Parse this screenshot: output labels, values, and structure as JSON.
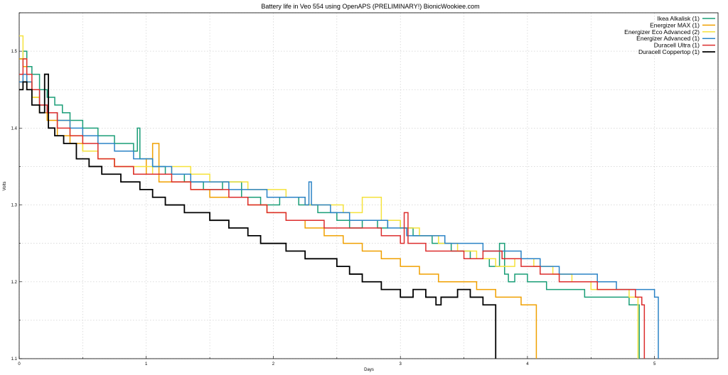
{
  "chart_data": {
    "type": "line",
    "title": "Battery life in Veo 554 using OpenAPS (PRELIMINARY!) BionicWookiee.com",
    "xlabel": "Days",
    "ylabel": "Volts",
    "xlim": [
      0,
      5.5
    ],
    "ylim": [
      1.1,
      1.55
    ],
    "xticks": [
      "0",
      "1",
      "2",
      "3",
      "4",
      "5"
    ],
    "yticks": [
      "1.1",
      "1.2",
      "1.3",
      "1.4",
      "1.5"
    ],
    "grid": true,
    "legend_position": "top-right",
    "step": true,
    "series": [
      {
        "name": "Ikea Alkalisk (1)",
        "color": "#1a9e77",
        "x": [
          0,
          0.03,
          0.06,
          0.1,
          0.16,
          0.22,
          0.28,
          0.34,
          0.4,
          0.5,
          0.62,
          0.75,
          0.9,
          0.93,
          0.95,
          1.05,
          1.15,
          1.3,
          1.45,
          1.6,
          1.75,
          1.9,
          2.05,
          2.2,
          2.35,
          2.5,
          2.6,
          2.7,
          2.82,
          2.9,
          3.0,
          3.1,
          3.25,
          3.4,
          3.55,
          3.7,
          3.78,
          3.82,
          3.85,
          3.9,
          4.0,
          4.15,
          4.3,
          4.45,
          4.6,
          4.7,
          4.8,
          4.85,
          4.88
        ],
        "y": [
          1.49,
          1.5,
          1.48,
          1.47,
          1.45,
          1.44,
          1.43,
          1.42,
          1.41,
          1.4,
          1.39,
          1.38,
          1.37,
          1.4,
          1.36,
          1.35,
          1.34,
          1.33,
          1.32,
          1.33,
          1.31,
          1.3,
          1.31,
          1.3,
          1.29,
          1.28,
          1.27,
          1.28,
          1.27,
          1.28,
          1.27,
          1.26,
          1.25,
          1.24,
          1.23,
          1.22,
          1.25,
          1.21,
          1.2,
          1.21,
          1.2,
          1.19,
          1.19,
          1.18,
          1.18,
          1.18,
          1.17,
          1.17,
          1.1
        ]
      },
      {
        "name": "Energizer MAX (1)",
        "color": "#f0a000",
        "x": [
          0,
          0.03,
          0.06,
          0.1,
          0.16,
          0.22,
          0.3,
          0.4,
          0.5,
          0.62,
          0.75,
          0.9,
          1.0,
          1.05,
          1.1,
          1.2,
          1.35,
          1.5,
          1.65,
          1.8,
          1.95,
          2.1,
          2.25,
          2.4,
          2.55,
          2.7,
          2.85,
          3.0,
          3.15,
          3.3,
          3.45,
          3.6,
          3.75,
          3.85,
          3.95,
          4.05,
          4.07
        ],
        "y": [
          1.49,
          1.48,
          1.46,
          1.44,
          1.42,
          1.41,
          1.39,
          1.38,
          1.37,
          1.36,
          1.35,
          1.34,
          1.36,
          1.38,
          1.33,
          1.33,
          1.32,
          1.31,
          1.31,
          1.3,
          1.29,
          1.28,
          1.27,
          1.26,
          1.25,
          1.24,
          1.23,
          1.22,
          1.21,
          1.2,
          1.2,
          1.19,
          1.18,
          1.18,
          1.17,
          1.17,
          1.1
        ]
      },
      {
        "name": "Energizer Eco Advanced (2)",
        "color": "#f5e23c",
        "x": [
          0,
          0.03,
          0.06,
          0.1,
          0.16,
          0.22,
          0.3,
          0.4,
          0.5,
          0.62,
          0.75,
          0.9,
          1.05,
          1.2,
          1.35,
          1.5,
          1.65,
          1.8,
          1.95,
          2.1,
          2.25,
          2.4,
          2.55,
          2.7,
          2.85,
          3.0,
          3.15,
          3.3,
          3.45,
          3.6,
          3.75,
          3.9,
          4.05,
          4.2,
          4.35,
          4.5,
          4.65,
          4.8,
          4.87
        ],
        "y": [
          1.52,
          1.49,
          1.46,
          1.44,
          1.43,
          1.42,
          1.41,
          1.39,
          1.37,
          1.36,
          1.35,
          1.35,
          1.34,
          1.35,
          1.34,
          1.33,
          1.33,
          1.32,
          1.32,
          1.31,
          1.3,
          1.3,
          1.29,
          1.31,
          1.28,
          1.27,
          1.26,
          1.25,
          1.24,
          1.23,
          1.22,
          1.23,
          1.22,
          1.21,
          1.2,
          1.19,
          1.19,
          1.18,
          1.1
        ]
      },
      {
        "name": "Energizer Advanced (1)",
        "color": "#2b83c6",
        "x": [
          0,
          0.03,
          0.06,
          0.1,
          0.16,
          0.22,
          0.3,
          0.4,
          0.5,
          0.62,
          0.75,
          0.9,
          1.05,
          1.2,
          1.35,
          1.5,
          1.65,
          1.8,
          1.95,
          2.1,
          2.25,
          2.28,
          2.3,
          2.45,
          2.6,
          2.75,
          2.9,
          3.05,
          3.2,
          3.35,
          3.5,
          3.65,
          3.8,
          3.95,
          4.1,
          4.25,
          4.4,
          4.55,
          4.7,
          4.85,
          5.0,
          5.03
        ],
        "y": [
          1.46,
          1.47,
          1.46,
          1.45,
          1.43,
          1.42,
          1.41,
          1.4,
          1.39,
          1.38,
          1.37,
          1.36,
          1.35,
          1.34,
          1.33,
          1.33,
          1.32,
          1.32,
          1.31,
          1.31,
          1.3,
          1.33,
          1.3,
          1.29,
          1.28,
          1.28,
          1.27,
          1.26,
          1.26,
          1.25,
          1.25,
          1.24,
          1.24,
          1.23,
          1.22,
          1.21,
          1.21,
          1.2,
          1.19,
          1.19,
          1.18,
          1.1
        ]
      },
      {
        "name": "Duracell Ultra (1)",
        "color": "#dc2d2d",
        "x": [
          0,
          0.03,
          0.06,
          0.1,
          0.16,
          0.22,
          0.3,
          0.4,
          0.5,
          0.62,
          0.75,
          0.9,
          1.05,
          1.2,
          1.35,
          1.5,
          1.65,
          1.8,
          1.95,
          2.1,
          2.25,
          2.4,
          2.55,
          2.7,
          2.85,
          3.0,
          3.03,
          3.06,
          3.2,
          3.35,
          3.5,
          3.65,
          3.8,
          3.95,
          4.1,
          4.25,
          4.4,
          4.55,
          4.7,
          4.85,
          4.9,
          4.92
        ],
        "y": [
          1.47,
          1.49,
          1.47,
          1.45,
          1.43,
          1.42,
          1.4,
          1.39,
          1.38,
          1.36,
          1.35,
          1.34,
          1.34,
          1.33,
          1.32,
          1.32,
          1.31,
          1.3,
          1.29,
          1.28,
          1.28,
          1.27,
          1.27,
          1.27,
          1.26,
          1.25,
          1.29,
          1.25,
          1.24,
          1.24,
          1.23,
          1.24,
          1.23,
          1.22,
          1.21,
          1.2,
          1.2,
          1.19,
          1.19,
          1.18,
          1.17,
          1.1
        ]
      },
      {
        "name": "Duracell Coppertop (1)",
        "color": "#000000",
        "x": [
          0,
          0.03,
          0.06,
          0.1,
          0.16,
          0.2,
          0.23,
          0.28,
          0.35,
          0.45,
          0.55,
          0.65,
          0.8,
          0.95,
          1.05,
          1.15,
          1.3,
          1.5,
          1.65,
          1.8,
          1.9,
          2.0,
          2.1,
          2.25,
          2.4,
          2.5,
          2.6,
          2.7,
          2.85,
          3.0,
          3.1,
          3.2,
          3.28,
          3.32,
          3.45,
          3.55,
          3.65,
          3.75
        ],
        "y": [
          1.45,
          1.46,
          1.45,
          1.43,
          1.42,
          1.47,
          1.4,
          1.39,
          1.38,
          1.36,
          1.35,
          1.34,
          1.33,
          1.32,
          1.31,
          1.3,
          1.29,
          1.28,
          1.27,
          1.26,
          1.25,
          1.25,
          1.24,
          1.23,
          1.23,
          1.22,
          1.21,
          1.2,
          1.19,
          1.18,
          1.19,
          1.18,
          1.17,
          1.18,
          1.19,
          1.18,
          1.17,
          1.1
        ]
      }
    ]
  }
}
